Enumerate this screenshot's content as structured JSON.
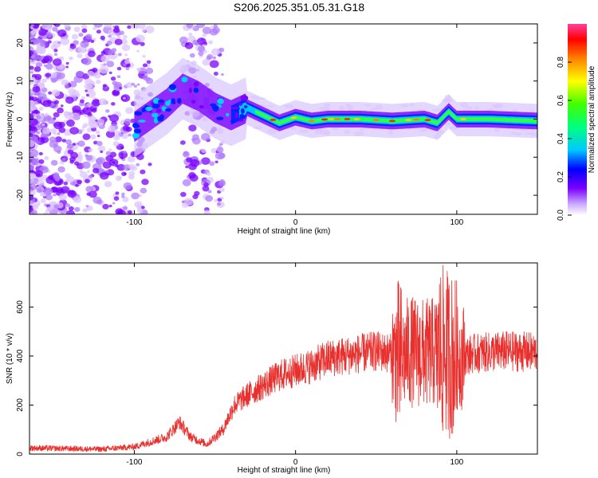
{
  "title": "S206.2025.351.05.31.G18",
  "chart_data": [
    {
      "type": "heatmap",
      "xlabel": "Height of straight line (km)",
      "ylabel": "Frequency (Hz)",
      "xlim": [
        -165,
        150
      ],
      "ylim": [
        -25,
        25
      ],
      "x_ticks": [
        -100,
        0,
        100
      ],
      "y_ticks": [
        -20,
        -10,
        0,
        10,
        20
      ],
      "colorbar": {
        "label": "Normalized spectral amplitude",
        "range": [
          0,
          1
        ],
        "ticks": [
          0.0,
          0.2,
          0.4,
          0.6,
          0.8
        ],
        "tick_labels": [
          "0.0",
          "0.2",
          "0.4",
          "0.6",
          "0.8"
        ]
      },
      "ridge": {
        "description_points": [
          [
            -100,
            -2
          ],
          [
            -90,
            1
          ],
          [
            -80,
            4
          ],
          [
            -70,
            8
          ],
          [
            -60,
            6
          ],
          [
            -50,
            3
          ],
          [
            -40,
            1
          ],
          [
            -30,
            3
          ],
          [
            -20,
            1
          ],
          [
            -10,
            -1
          ],
          [
            0,
            0.5
          ],
          [
            10,
            -0.5
          ],
          [
            20,
            0
          ],
          [
            40,
            0
          ],
          [
            60,
            -0.5
          ],
          [
            80,
            0
          ],
          [
            88,
            -1
          ],
          [
            95,
            2
          ],
          [
            100,
            0
          ],
          [
            120,
            0
          ],
          [
            150,
            -0.5
          ]
        ]
      }
    },
    {
      "type": "line",
      "xlabel": "Height of straight line (km)",
      "ylabel": "SNR (10 * v/v)",
      "xlim": [
        -165,
        150
      ],
      "ylim": [
        0,
        780
      ],
      "x_ticks": [
        -100,
        0,
        100
      ],
      "y_ticks": [
        0,
        200,
        400,
        600
      ],
      "series": [
        {
          "name": "SNR",
          "color": "#e8312e",
          "envelope": [
            [
              -165,
              25
            ],
            [
              -120,
              20
            ],
            [
              -100,
              30
            ],
            [
              -90,
              50
            ],
            [
              -80,
              70
            ],
            [
              -72,
              130
            ],
            [
              -65,
              70
            ],
            [
              -55,
              40
            ],
            [
              -45,
              100
            ],
            [
              -38,
              200
            ],
            [
              -30,
              240
            ],
            [
              -20,
              280
            ],
            [
              -10,
              320
            ],
            [
              0,
              340
            ],
            [
              10,
              360
            ],
            [
              20,
              390
            ],
            [
              30,
              400
            ],
            [
              40,
              410
            ],
            [
              50,
              420
            ],
            [
              60,
              410
            ],
            [
              65,
              380
            ],
            [
              70,
              420
            ],
            [
              80,
              410
            ],
            [
              90,
              420
            ],
            [
              95,
              410
            ],
            [
              100,
              390
            ],
            [
              110,
              410
            ],
            [
              130,
              420
            ],
            [
              150,
              415
            ]
          ]
        }
      ]
    }
  ]
}
